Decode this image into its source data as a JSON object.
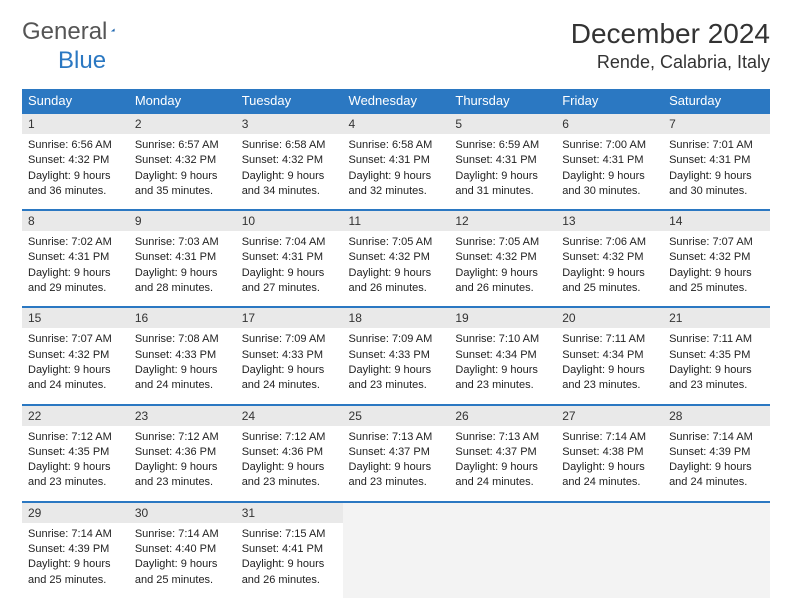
{
  "logo": {
    "general": "General",
    "blue": "Blue"
  },
  "title": "December 2024",
  "location": "Rende, Calabria, Italy",
  "colors": {
    "header_bg": "#2B78C2",
    "header_text": "#ffffff",
    "daynum_bg": "#e9e9e9",
    "row_border": "#2B78C2",
    "body_text": "#222222",
    "page_bg": "#ffffff"
  },
  "typography": {
    "title_fontsize": 28,
    "location_fontsize": 18,
    "dayhead_fontsize": 13,
    "daynum_fontsize": 12,
    "cell_fontsize": 11,
    "font_family": "Arial"
  },
  "day_headers": [
    "Sunday",
    "Monday",
    "Tuesday",
    "Wednesday",
    "Thursday",
    "Friday",
    "Saturday"
  ],
  "weeks": [
    {
      "days": [
        {
          "num": "1",
          "sunrise": "Sunrise: 6:56 AM",
          "sunset": "Sunset: 4:32 PM",
          "day1": "Daylight: 9 hours",
          "day2": "and 36 minutes."
        },
        {
          "num": "2",
          "sunrise": "Sunrise: 6:57 AM",
          "sunset": "Sunset: 4:32 PM",
          "day1": "Daylight: 9 hours",
          "day2": "and 35 minutes."
        },
        {
          "num": "3",
          "sunrise": "Sunrise: 6:58 AM",
          "sunset": "Sunset: 4:32 PM",
          "day1": "Daylight: 9 hours",
          "day2": "and 34 minutes."
        },
        {
          "num": "4",
          "sunrise": "Sunrise: 6:58 AM",
          "sunset": "Sunset: 4:31 PM",
          "day1": "Daylight: 9 hours",
          "day2": "and 32 minutes."
        },
        {
          "num": "5",
          "sunrise": "Sunrise: 6:59 AM",
          "sunset": "Sunset: 4:31 PM",
          "day1": "Daylight: 9 hours",
          "day2": "and 31 minutes."
        },
        {
          "num": "6",
          "sunrise": "Sunrise: 7:00 AM",
          "sunset": "Sunset: 4:31 PM",
          "day1": "Daylight: 9 hours",
          "day2": "and 30 minutes."
        },
        {
          "num": "7",
          "sunrise": "Sunrise: 7:01 AM",
          "sunset": "Sunset: 4:31 PM",
          "day1": "Daylight: 9 hours",
          "day2": "and 30 minutes."
        }
      ]
    },
    {
      "days": [
        {
          "num": "8",
          "sunrise": "Sunrise: 7:02 AM",
          "sunset": "Sunset: 4:31 PM",
          "day1": "Daylight: 9 hours",
          "day2": "and 29 minutes."
        },
        {
          "num": "9",
          "sunrise": "Sunrise: 7:03 AM",
          "sunset": "Sunset: 4:31 PM",
          "day1": "Daylight: 9 hours",
          "day2": "and 28 minutes."
        },
        {
          "num": "10",
          "sunrise": "Sunrise: 7:04 AM",
          "sunset": "Sunset: 4:31 PM",
          "day1": "Daylight: 9 hours",
          "day2": "and 27 minutes."
        },
        {
          "num": "11",
          "sunrise": "Sunrise: 7:05 AM",
          "sunset": "Sunset: 4:32 PM",
          "day1": "Daylight: 9 hours",
          "day2": "and 26 minutes."
        },
        {
          "num": "12",
          "sunrise": "Sunrise: 7:05 AM",
          "sunset": "Sunset: 4:32 PM",
          "day1": "Daylight: 9 hours",
          "day2": "and 26 minutes."
        },
        {
          "num": "13",
          "sunrise": "Sunrise: 7:06 AM",
          "sunset": "Sunset: 4:32 PM",
          "day1": "Daylight: 9 hours",
          "day2": "and 25 minutes."
        },
        {
          "num": "14",
          "sunrise": "Sunrise: 7:07 AM",
          "sunset": "Sunset: 4:32 PM",
          "day1": "Daylight: 9 hours",
          "day2": "and 25 minutes."
        }
      ]
    },
    {
      "days": [
        {
          "num": "15",
          "sunrise": "Sunrise: 7:07 AM",
          "sunset": "Sunset: 4:32 PM",
          "day1": "Daylight: 9 hours",
          "day2": "and 24 minutes."
        },
        {
          "num": "16",
          "sunrise": "Sunrise: 7:08 AM",
          "sunset": "Sunset: 4:33 PM",
          "day1": "Daylight: 9 hours",
          "day2": "and 24 minutes."
        },
        {
          "num": "17",
          "sunrise": "Sunrise: 7:09 AM",
          "sunset": "Sunset: 4:33 PM",
          "day1": "Daylight: 9 hours",
          "day2": "and 24 minutes."
        },
        {
          "num": "18",
          "sunrise": "Sunrise: 7:09 AM",
          "sunset": "Sunset: 4:33 PM",
          "day1": "Daylight: 9 hours",
          "day2": "and 23 minutes."
        },
        {
          "num": "19",
          "sunrise": "Sunrise: 7:10 AM",
          "sunset": "Sunset: 4:34 PM",
          "day1": "Daylight: 9 hours",
          "day2": "and 23 minutes."
        },
        {
          "num": "20",
          "sunrise": "Sunrise: 7:11 AM",
          "sunset": "Sunset: 4:34 PM",
          "day1": "Daylight: 9 hours",
          "day2": "and 23 minutes."
        },
        {
          "num": "21",
          "sunrise": "Sunrise: 7:11 AM",
          "sunset": "Sunset: 4:35 PM",
          "day1": "Daylight: 9 hours",
          "day2": "and 23 minutes."
        }
      ]
    },
    {
      "days": [
        {
          "num": "22",
          "sunrise": "Sunrise: 7:12 AM",
          "sunset": "Sunset: 4:35 PM",
          "day1": "Daylight: 9 hours",
          "day2": "and 23 minutes."
        },
        {
          "num": "23",
          "sunrise": "Sunrise: 7:12 AM",
          "sunset": "Sunset: 4:36 PM",
          "day1": "Daylight: 9 hours",
          "day2": "and 23 minutes."
        },
        {
          "num": "24",
          "sunrise": "Sunrise: 7:12 AM",
          "sunset": "Sunset: 4:36 PM",
          "day1": "Daylight: 9 hours",
          "day2": "and 23 minutes."
        },
        {
          "num": "25",
          "sunrise": "Sunrise: 7:13 AM",
          "sunset": "Sunset: 4:37 PM",
          "day1": "Daylight: 9 hours",
          "day2": "and 23 minutes."
        },
        {
          "num": "26",
          "sunrise": "Sunrise: 7:13 AM",
          "sunset": "Sunset: 4:37 PM",
          "day1": "Daylight: 9 hours",
          "day2": "and 24 minutes."
        },
        {
          "num": "27",
          "sunrise": "Sunrise: 7:14 AM",
          "sunset": "Sunset: 4:38 PM",
          "day1": "Daylight: 9 hours",
          "day2": "and 24 minutes."
        },
        {
          "num": "28",
          "sunrise": "Sunrise: 7:14 AM",
          "sunset": "Sunset: 4:39 PM",
          "day1": "Daylight: 9 hours",
          "day2": "and 24 minutes."
        }
      ]
    },
    {
      "days": [
        {
          "num": "29",
          "sunrise": "Sunrise: 7:14 AM",
          "sunset": "Sunset: 4:39 PM",
          "day1": "Daylight: 9 hours",
          "day2": "and 25 minutes."
        },
        {
          "num": "30",
          "sunrise": "Sunrise: 7:14 AM",
          "sunset": "Sunset: 4:40 PM",
          "day1": "Daylight: 9 hours",
          "day2": "and 25 minutes."
        },
        {
          "num": "31",
          "sunrise": "Sunrise: 7:15 AM",
          "sunset": "Sunset: 4:41 PM",
          "day1": "Daylight: 9 hours",
          "day2": "and 26 minutes."
        },
        {
          "empty": true
        },
        {
          "empty": true
        },
        {
          "empty": true
        },
        {
          "empty": true
        }
      ]
    }
  ]
}
